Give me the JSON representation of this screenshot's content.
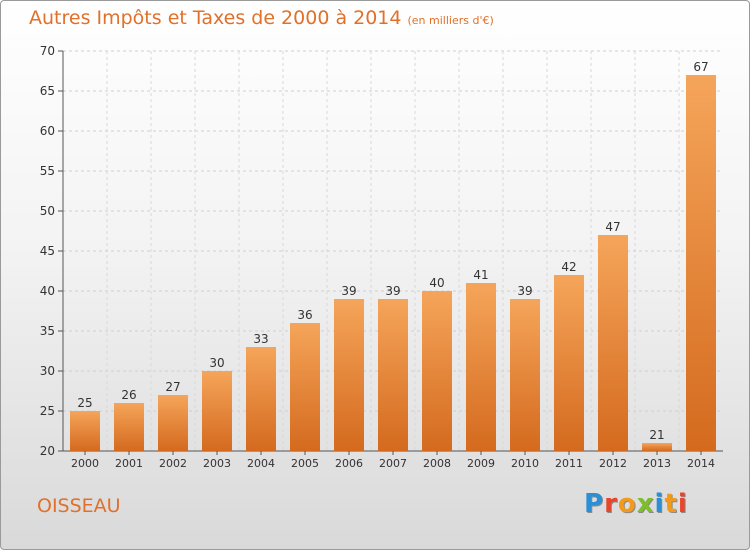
{
  "title": "Autres Impôts et Taxes de 2000 à 2014",
  "unit_label": "(en milliers d'€)",
  "commune": "OISSEAU",
  "logo": {
    "letters": [
      "P",
      "r",
      "o",
      "x",
      "i",
      "t",
      "i"
    ],
    "colors": [
      "#2b8fd6",
      "#e8452c",
      "#f29a1b",
      "#7cbf2a",
      "#2b8fd6",
      "#f29a1b",
      "#e8452c"
    ]
  },
  "colors": {
    "accent": "#e0702a",
    "bar_top": "#f5a55a",
    "bar_bottom": "#d46a1e"
  },
  "chart_data": {
    "type": "bar",
    "categories": [
      "2000",
      "2001",
      "2002",
      "2003",
      "2004",
      "2005",
      "2006",
      "2007",
      "2008",
      "2009",
      "2010",
      "2011",
      "2012",
      "2013",
      "2014"
    ],
    "values": [
      25,
      26,
      27,
      30,
      33,
      36,
      39,
      39,
      40,
      41,
      39,
      42,
      47,
      21,
      67
    ],
    "title": "Autres Impôts et Taxes de 2000 à 2014",
    "xlabel": "",
    "ylabel": "",
    "ylim": [
      20,
      70
    ],
    "yticks": [
      20,
      25,
      30,
      35,
      40,
      45,
      50,
      55,
      60,
      65,
      70
    ],
    "grid": true,
    "data_labels": true
  }
}
